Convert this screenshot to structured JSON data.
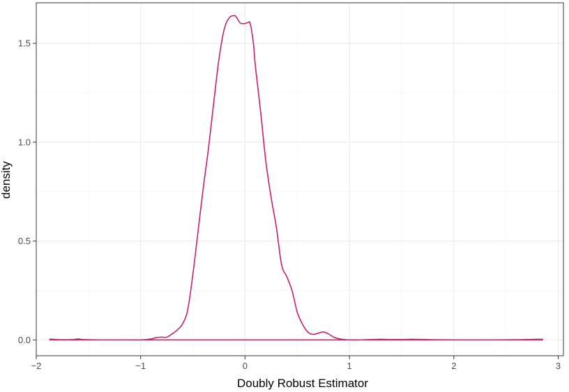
{
  "chart_data": {
    "type": "line",
    "title": "",
    "xlabel": "Doubly Robust Estimator",
    "ylabel": "density",
    "xlim": [
      -2.0,
      3.05
    ],
    "ylim": [
      -0.08,
      1.705
    ],
    "x_ticks": [
      -2,
      -1,
      0,
      1,
      2,
      3
    ],
    "x_tick_labels": [
      "−2",
      "−1",
      "0",
      "1",
      "2",
      "3"
    ],
    "y_ticks": [
      0.0,
      0.5,
      1.0,
      1.5
    ],
    "y_tick_labels": [
      "0.0",
      "0.5",
      "1.0",
      "1.5"
    ],
    "grid": true,
    "legend": "none",
    "series": [
      {
        "color": "#c71f6e",
        "x": [
          -1.87,
          -1.75,
          -1.65,
          -1.6,
          -1.55,
          -1.4,
          -1.2,
          -1.0,
          -0.9,
          -0.85,
          -0.8,
          -0.75,
          -0.7,
          -0.65,
          -0.6,
          -0.55,
          -0.5,
          -0.45,
          -0.4,
          -0.35,
          -0.3,
          -0.25,
          -0.2,
          -0.15,
          -0.1,
          -0.08,
          -0.05,
          -0.03,
          0.0,
          0.03,
          0.05,
          0.08,
          0.1,
          0.15,
          0.2,
          0.25,
          0.3,
          0.35,
          0.4,
          0.45,
          0.5,
          0.55,
          0.6,
          0.65,
          0.7,
          0.75,
          0.8,
          0.85,
          0.9,
          0.95,
          1.0,
          1.1,
          1.2,
          1.3,
          1.4,
          1.5,
          1.6,
          1.8,
          2.0,
          2.3,
          2.6,
          2.8,
          2.85
        ],
        "y": [
          0.004,
          0.001,
          0.002,
          0.005,
          0.002,
          0.0,
          0.0,
          0.0,
          0.005,
          0.012,
          0.014,
          0.014,
          0.03,
          0.05,
          0.08,
          0.15,
          0.33,
          0.55,
          0.77,
          0.97,
          1.2,
          1.42,
          1.57,
          1.63,
          1.64,
          1.63,
          1.605,
          1.6,
          1.6,
          1.605,
          1.6,
          1.5,
          1.38,
          1.15,
          0.9,
          0.72,
          0.57,
          0.38,
          0.32,
          0.25,
          0.14,
          0.08,
          0.04,
          0.028,
          0.034,
          0.04,
          0.03,
          0.014,
          0.006,
          0.002,
          0.0,
          0.0,
          0.002,
          0.003,
          0.002,
          0.002,
          0.003,
          0.001,
          0.0,
          0.0,
          0.001,
          0.003,
          0.003
        ]
      }
    ]
  }
}
